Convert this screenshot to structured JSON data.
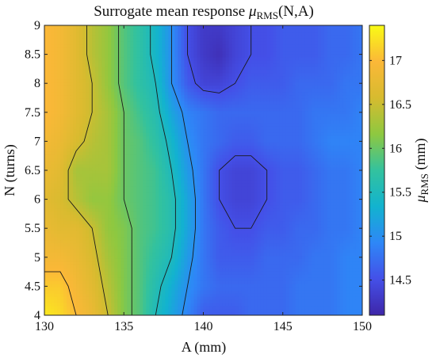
{
  "chart_data": {
    "type": "heatmap",
    "title_main": "Surrogate mean response ",
    "title_mu": "μ",
    "title_sub": "RMS",
    "title_tail": "(N,A)",
    "xlabel": "A (mm)",
    "ylabel": "N (turns)",
    "colorbar_label_mu": "μ",
    "colorbar_label_sub": "RMS",
    "colorbar_label_tail": " (mm)",
    "x_range": [
      130,
      150
    ],
    "y_range": [
      4,
      9
    ],
    "x_ticks": [
      "130",
      "135",
      "140",
      "145",
      "150"
    ],
    "y_ticks": [
      "4",
      "4.5",
      "5",
      "5.5",
      "6",
      "6.5",
      "7",
      "7.5",
      "8",
      "8.5",
      "9"
    ],
    "colorbar_range": [
      14.1,
      17.4
    ],
    "colorbar_ticks": [
      "14.5",
      "15",
      "15.5",
      "16",
      "16.5",
      "17"
    ],
    "colormap": "parula",
    "colors": [
      "#3e26a8",
      "#4450e8",
      "#2e87f7",
      "#12b3cf",
      "#33c29e",
      "#8ec840",
      "#d7bb2f",
      "#fbb838",
      "#f9fb15"
    ],
    "contour_levels": [
      14.5,
      15.0,
      15.5,
      16.0,
      16.5,
      17.0
    ],
    "grid_x": [
      130,
      131,
      132,
      133,
      134,
      135,
      136,
      137,
      138,
      139,
      140,
      141,
      142,
      143,
      144,
      145,
      146,
      147,
      148,
      149,
      150
    ],
    "grid_y": [
      4.0,
      4.5,
      5.0,
      5.5,
      6.0,
      6.5,
      7.0,
      7.5,
      8.0,
      8.5,
      9.0
    ],
    "z": [
      [
        17.3,
        17.2,
        17.0,
        16.8,
        16.5,
        16.1,
        15.9,
        15.5,
        15.2,
        14.9,
        14.6,
        14.6,
        14.6,
        14.7,
        14.7,
        14.7,
        14.8,
        14.8,
        14.8,
        14.9,
        14.9
      ],
      [
        17.1,
        17.1,
        16.9,
        16.7,
        16.4,
        16.1,
        15.9,
        15.6,
        15.3,
        15.0,
        14.8,
        14.7,
        14.7,
        14.7,
        14.7,
        14.7,
        14.8,
        14.8,
        14.8,
        14.9,
        14.9
      ],
      [
        16.9,
        16.9,
        16.8,
        16.6,
        16.3,
        16.1,
        15.9,
        15.7,
        15.5,
        15.1,
        14.8,
        14.6,
        14.6,
        14.6,
        14.7,
        14.7,
        14.7,
        14.8,
        14.8,
        14.9,
        14.9
      ],
      [
        16.8,
        16.7,
        16.7,
        16.5,
        16.2,
        16.1,
        15.9,
        15.8,
        15.6,
        15.2,
        14.8,
        14.6,
        14.5,
        14.5,
        14.6,
        14.6,
        14.7,
        14.7,
        14.8,
        14.8,
        14.9
      ],
      [
        16.7,
        16.6,
        16.4,
        16.2,
        16.2,
        16.0,
        15.9,
        15.8,
        15.6,
        15.2,
        14.8,
        14.5,
        14.4,
        14.4,
        14.5,
        14.6,
        14.6,
        14.7,
        14.8,
        14.8,
        14.9
      ],
      [
        16.8,
        16.7,
        16.3,
        16.3,
        16.3,
        16.0,
        15.9,
        15.8,
        15.5,
        15.1,
        14.8,
        14.5,
        14.4,
        14.4,
        14.5,
        14.6,
        14.6,
        14.7,
        14.8,
        14.8,
        14.9
      ],
      [
        16.9,
        16.8,
        16.6,
        16.4,
        16.3,
        16.0,
        15.9,
        15.7,
        15.4,
        15.0,
        14.8,
        14.7,
        14.6,
        14.6,
        14.7,
        14.7,
        14.7,
        14.8,
        14.9,
        14.9,
        14.9
      ],
      [
        17.0,
        16.9,
        16.7,
        16.5,
        16.3,
        16.0,
        15.8,
        15.6,
        15.2,
        14.9,
        14.8,
        14.7,
        14.7,
        14.7,
        14.7,
        14.7,
        14.7,
        14.8,
        14.8,
        14.8,
        14.9
      ],
      [
        17.0,
        16.9,
        16.7,
        16.5,
        16.2,
        15.9,
        15.7,
        15.5,
        15.0,
        14.6,
        14.4,
        14.4,
        14.5,
        14.6,
        14.6,
        14.6,
        14.7,
        14.7,
        14.7,
        14.8,
        14.8
      ],
      [
        17.0,
        16.9,
        16.7,
        16.4,
        16.2,
        15.9,
        15.7,
        15.4,
        15.0,
        14.5,
        14.3,
        14.2,
        14.4,
        14.5,
        14.5,
        14.6,
        14.6,
        14.6,
        14.7,
        14.7,
        14.8
      ],
      [
        17.0,
        16.9,
        16.7,
        16.4,
        16.2,
        15.9,
        15.7,
        15.4,
        15.0,
        14.5,
        14.3,
        14.3,
        14.4,
        14.5,
        14.5,
        14.6,
        14.6,
        14.6,
        14.7,
        14.7,
        14.8
      ]
    ]
  }
}
